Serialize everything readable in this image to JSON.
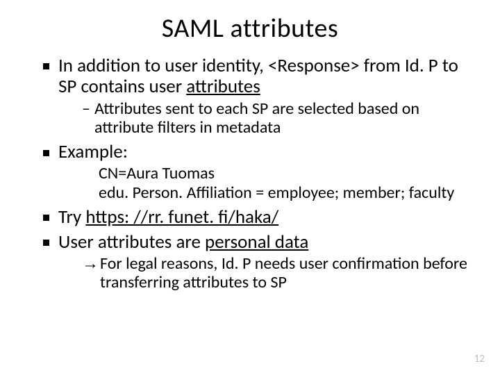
{
  "slide": {
    "title": "SAML attributes",
    "page_number": "12",
    "text_color": "#000000",
    "background_color": "#ffffff",
    "pagenum_color": "#bfbfbf",
    "title_fontsize": 38,
    "body_fontsize": 27,
    "sub_fontsize": 24
  },
  "bullets": {
    "b1_pre": "In addition to user identity, <Response> from Id. P to SP contains user ",
    "b1_ul": "attributes",
    "b1_sub": "Attributes sent to each SP are selected based on attribute filters in metadata",
    "b2": "Example:",
    "b2_code1": "CN=Aura Tuomas",
    "b2_code2": "edu. Person. Affiliation = employee; member; faculty",
    "b3_pre": "Try ",
    "b3_link": "https: //rr. funet. fi/haka/",
    "b4_pre": "User attributes are ",
    "b4_ul": "personal data",
    "b4_arrow": "For legal reasons, Id. P needs user confirmation before transferring attributes to SP"
  }
}
